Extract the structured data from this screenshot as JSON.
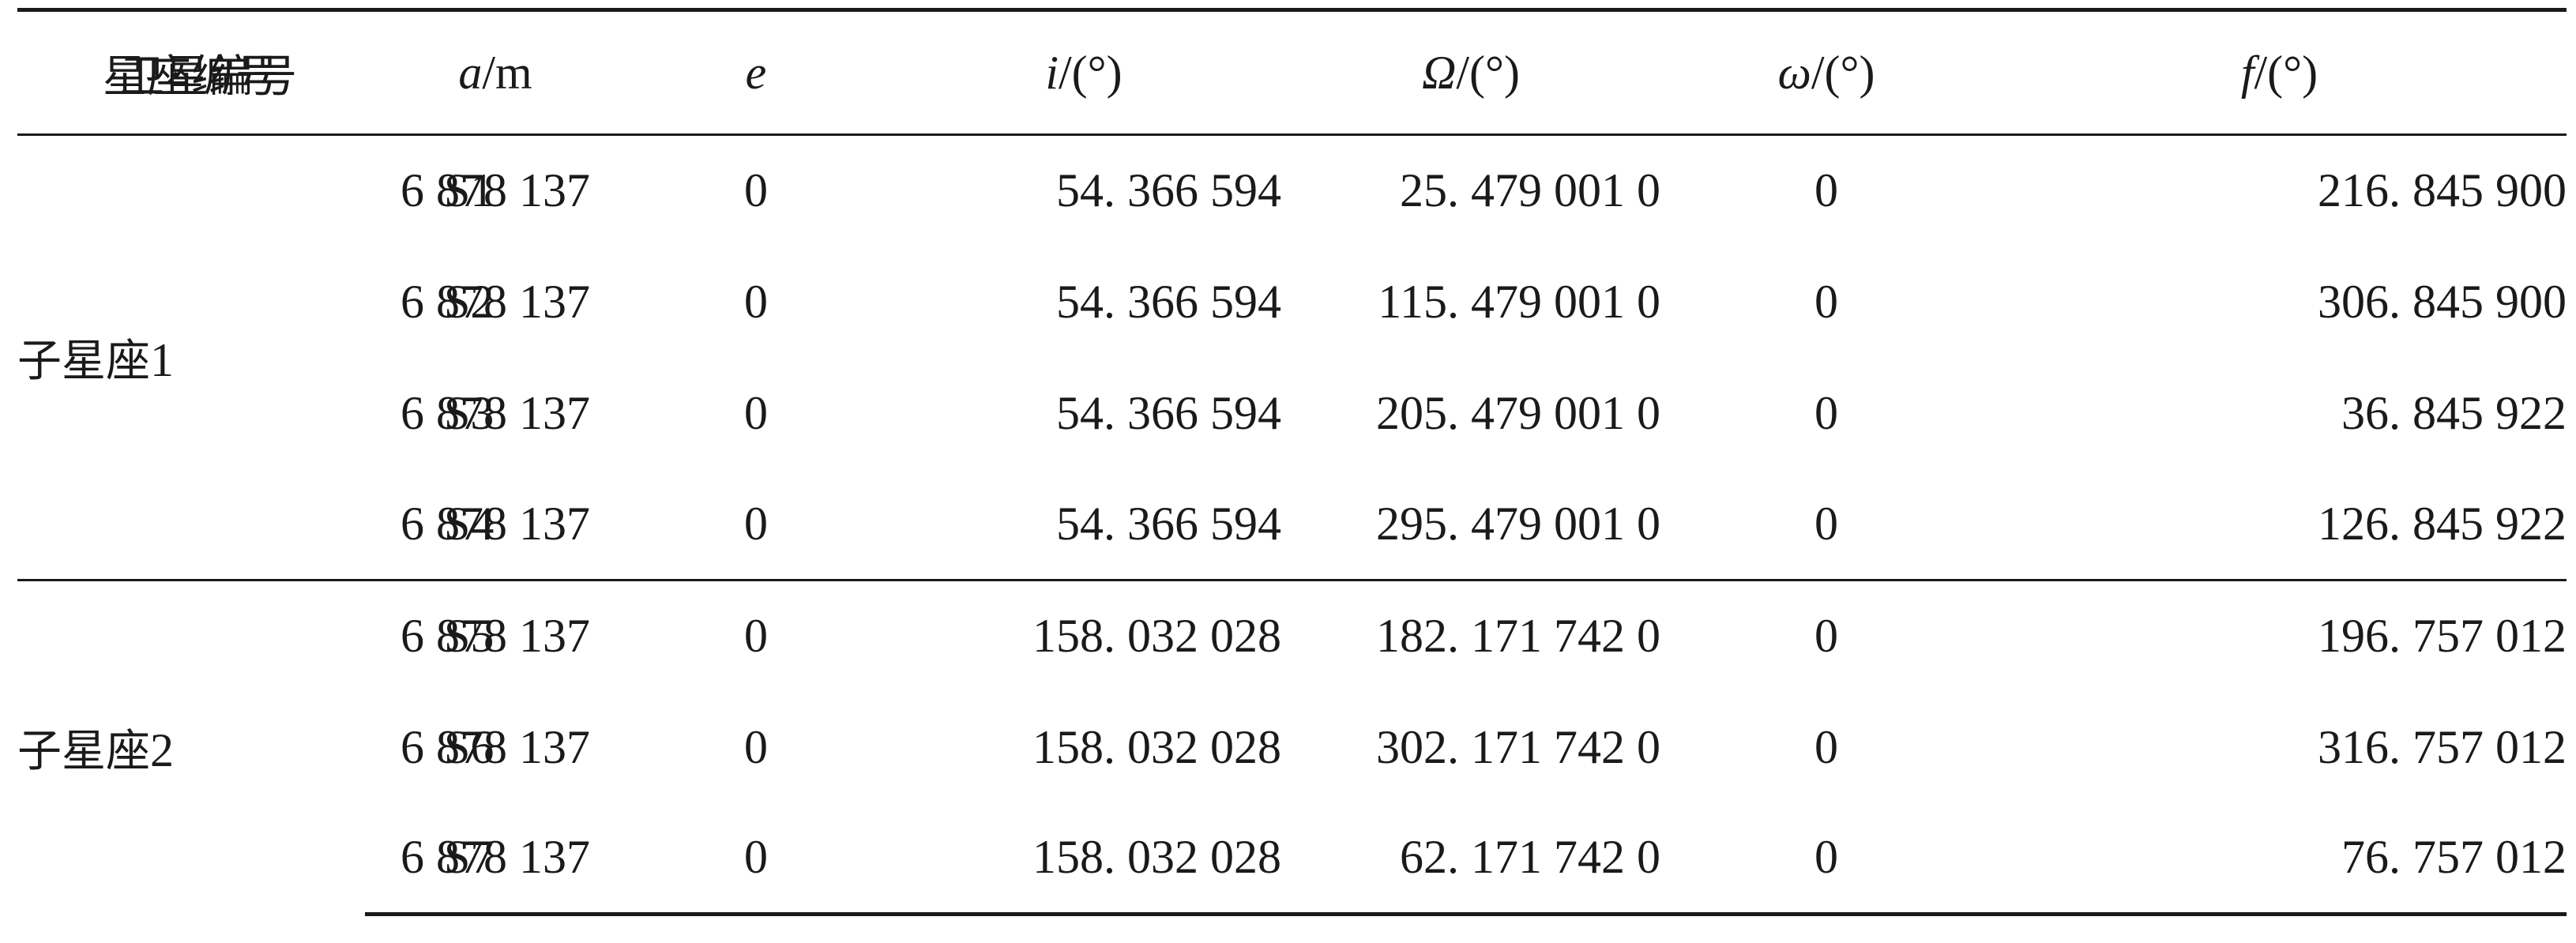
{
  "table": {
    "headers": {
      "constellation": "星座编号",
      "satellite": "卫星编号",
      "a": {
        "symbol": "a",
        "unit": "/m"
      },
      "e": {
        "symbol": "e"
      },
      "i": {
        "symbol": "i",
        "unit": "/(°)"
      },
      "raan": {
        "symbol": "Ω",
        "unit": "/(°)"
      },
      "omega": {
        "symbol": "ω",
        "unit": "/(°)"
      },
      "f": {
        "symbol": "f",
        "unit": "/(°)"
      }
    },
    "groups": [
      {
        "name": "子星座",
        "number": "1",
        "rows": [
          {
            "sat": "S1",
            "a": "6 878 137",
            "e": "0",
            "i": "54. 366 594",
            "raan": "25. 479 001 0",
            "omega": "0",
            "f": "216. 845 900"
          },
          {
            "sat": "S2",
            "a": "6 878 137",
            "e": "0",
            "i": "54. 366 594",
            "raan": "115. 479 001 0",
            "omega": "0",
            "f": "306. 845 900"
          },
          {
            "sat": "S3",
            "a": "6 878 137",
            "e": "0",
            "i": "54. 366 594",
            "raan": "205. 479 001 0",
            "omega": "0",
            "f": "36. 845 922"
          },
          {
            "sat": "S4",
            "a": "6 878 137",
            "e": "0",
            "i": "54. 366 594",
            "raan": "295. 479 001 0",
            "omega": "0",
            "f": "126. 845 922"
          }
        ]
      },
      {
        "name": "子星座",
        "number": "2",
        "rows": [
          {
            "sat": "S5",
            "a": "6 878 137",
            "e": "0",
            "i": "158. 032 028",
            "raan": "182. 171 742 0",
            "omega": "0",
            "f": "196. 757 012"
          },
          {
            "sat": "S6",
            "a": "6 878 137",
            "e": "0",
            "i": "158. 032 028",
            "raan": "302. 171 742 0",
            "omega": "0",
            "f": "316. 757 012"
          },
          {
            "sat": "S7",
            "a": "6 878 137",
            "e": "0",
            "i": "158. 032 028",
            "raan": "62. 171 742 0",
            "omega": "0",
            "f": "76. 757 012"
          }
        ]
      }
    ]
  }
}
